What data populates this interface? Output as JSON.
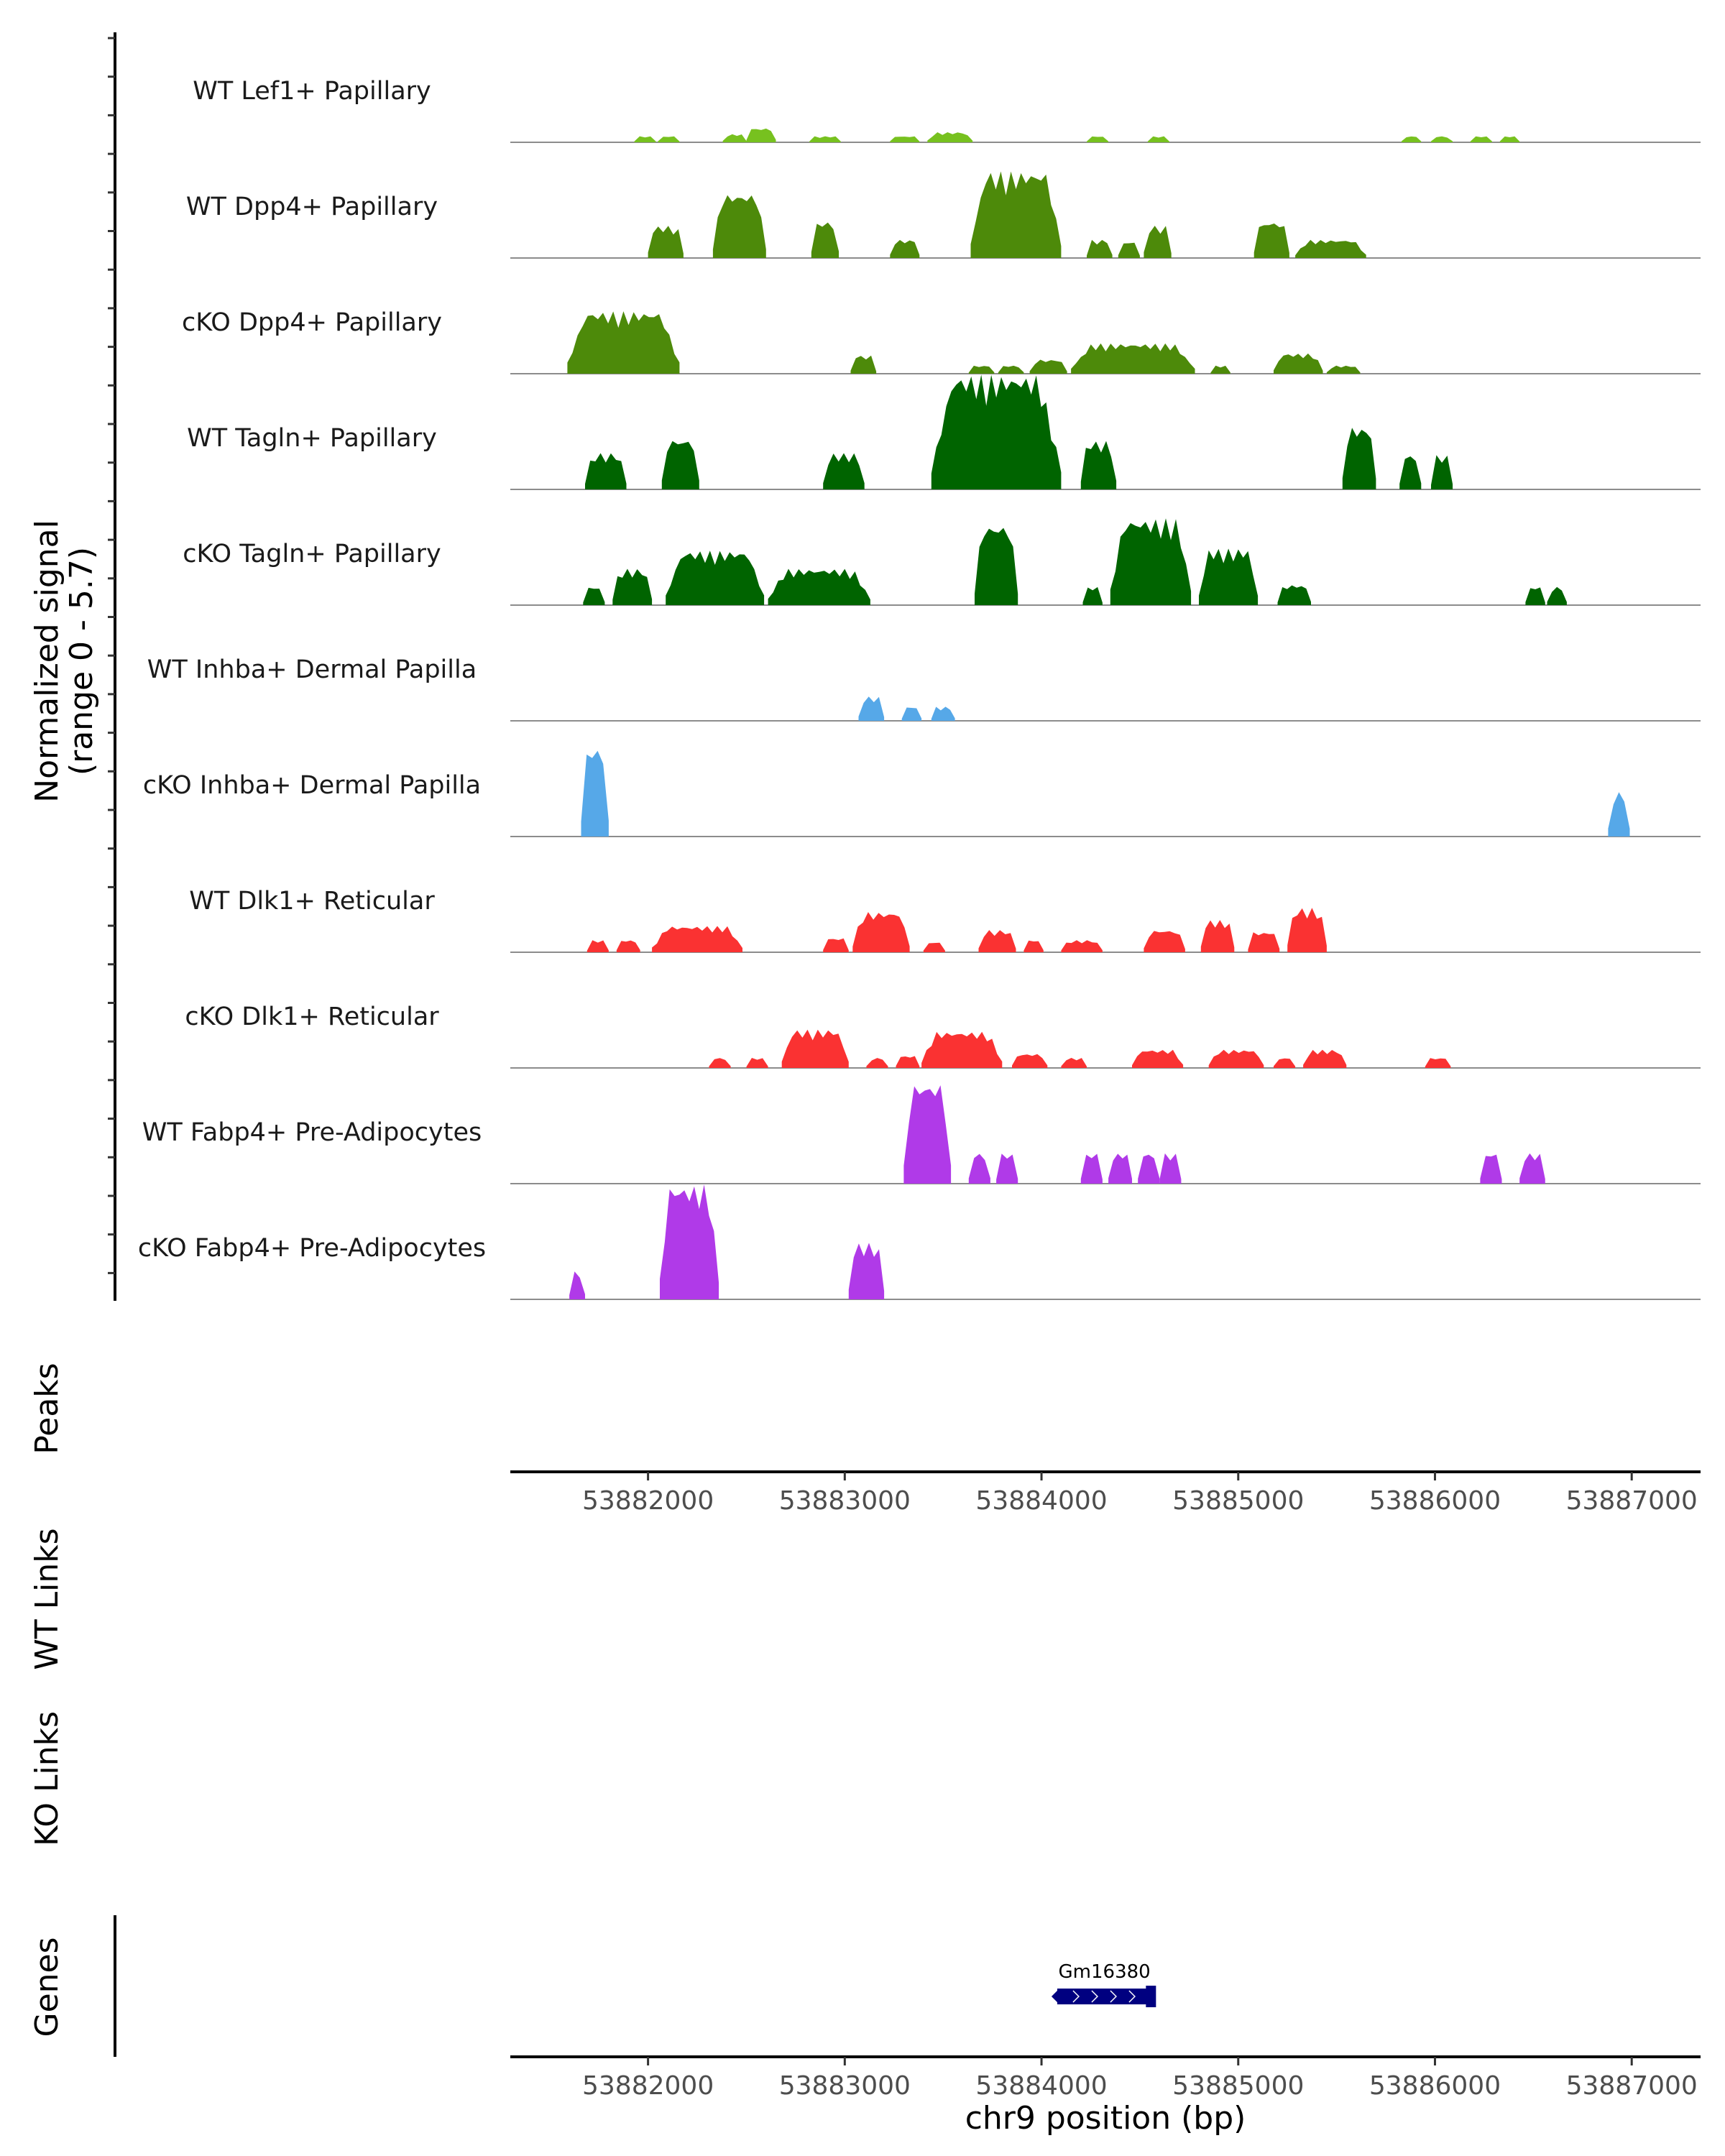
{
  "chart_data": {
    "type": "area",
    "title": "",
    "xlabel": "chr9 position (bp)",
    "ylabel": "Normalized signal\n(range 0 - 5.7)",
    "ylabel_lines": [
      "Normalized signal",
      "(range 0 - 5.7)"
    ],
    "ylim": [
      0,
      5.7
    ],
    "xlim": [
      53881300,
      53887350
    ],
    "x_ticks": [
      53882000,
      53883000,
      53884000,
      53885000,
      53886000,
      53887000
    ],
    "x_tick_labels": [
      "53882000",
      "53883000",
      "53884000",
      "53885000",
      "53886000",
      "53887000"
    ],
    "panel_titles": [
      "Peaks",
      "WT Links",
      "KO Links",
      "Genes"
    ],
    "series": [
      {
        "name": "WT Lef1+ Papillary",
        "color": "#77c11f",
        "segments": [
          [
            53881930,
            53882040,
            0.3
          ],
          [
            53882050,
            53882160,
            0.3
          ],
          [
            53882380,
            53882500,
            0.4
          ],
          [
            53882500,
            53882650,
            0.7
          ],
          [
            53882820,
            53882980,
            0.3
          ],
          [
            53883230,
            53883380,
            0.3
          ],
          [
            53883420,
            53883650,
            0.5
          ],
          [
            53884230,
            53884340,
            0.3
          ],
          [
            53884540,
            53884650,
            0.3
          ],
          [
            53885830,
            53885930,
            0.3
          ],
          [
            53885980,
            53886090,
            0.3
          ],
          [
            53886180,
            53886290,
            0.3
          ],
          [
            53886330,
            53886430,
            0.3
          ]
        ]
      },
      {
        "name": "WT Dpp4+ Papillary",
        "color": "#4d8a0a",
        "segments": [
          [
            53882000,
            53882180,
            1.6
          ],
          [
            53882330,
            53882600,
            3.2
          ],
          [
            53882830,
            53882970,
            1.8
          ],
          [
            53883230,
            53883380,
            0.9
          ],
          [
            53883640,
            53884100,
            4.3
          ],
          [
            53884230,
            53884360,
            0.9
          ],
          [
            53884390,
            53884500,
            0.8
          ],
          [
            53884520,
            53884660,
            1.6
          ],
          [
            53885080,
            53885260,
            1.8
          ],
          [
            53885290,
            53885650,
            0.9
          ]
        ]
      },
      {
        "name": "cKO Dpp4+ Papillary",
        "color": "#4d8a0a",
        "segments": [
          [
            53881590,
            53882160,
            3.1
          ],
          [
            53883030,
            53883160,
            0.9
          ],
          [
            53883630,
            53883760,
            0.4
          ],
          [
            53883780,
            53883910,
            0.4
          ],
          [
            53883940,
            53884130,
            0.7
          ],
          [
            53884150,
            53884780,
            1.5
          ],
          [
            53884860,
            53884960,
            0.4
          ],
          [
            53885180,
            53885430,
            1.0
          ],
          [
            53885450,
            53885620,
            0.4
          ]
        ]
      },
      {
        "name": "WT Tagln+ Papillary",
        "color": "#006400",
        "segments": [
          [
            53881680,
            53881890,
            1.8
          ],
          [
            53882070,
            53882260,
            2.5
          ],
          [
            53882890,
            53883100,
            1.8
          ],
          [
            53883440,
            53884100,
            5.7
          ],
          [
            53884200,
            53884380,
            2.4
          ],
          [
            53885530,
            53885700,
            3.1
          ],
          [
            53885820,
            53885930,
            1.7
          ],
          [
            53885980,
            53886090,
            1.7
          ]
        ]
      },
      {
        "name": "cKO Tagln+ Papillary",
        "color": "#006400",
        "segments": [
          [
            53881670,
            53881780,
            0.9
          ],
          [
            53881820,
            53882020,
            1.8
          ],
          [
            53882090,
            53882590,
            2.7
          ],
          [
            53882610,
            53883130,
            1.8
          ],
          [
            53883660,
            53883880,
            4.0
          ],
          [
            53884210,
            53884310,
            0.9
          ],
          [
            53884350,
            53884760,
            4.3
          ],
          [
            53884800,
            53885100,
            2.8
          ],
          [
            53885200,
            53885370,
            1.0
          ],
          [
            53886460,
            53886560,
            0.9
          ],
          [
            53886570,
            53886670,
            0.9
          ]
        ]
      },
      {
        "name": "WT Inhba+ Dermal Papilla",
        "color": "#56a8e8",
        "segments": [
          [
            53883070,
            53883200,
            1.2
          ],
          [
            53883290,
            53883390,
            0.7
          ],
          [
            53883440,
            53883560,
            0.7
          ]
        ]
      },
      {
        "name": "cKO Inhba+ Dermal Papilla",
        "color": "#56a8e8",
        "segments": [
          [
            53881660,
            53881800,
            4.4
          ],
          [
            53886880,
            53886990,
            2.2
          ]
        ]
      },
      {
        "name": "WT Dlk1+ Reticular",
        "color": "#fa3232",
        "segments": [
          [
            53881690,
            53881800,
            0.6
          ],
          [
            53881840,
            53881960,
            0.6
          ],
          [
            53882020,
            53882480,
            1.3
          ],
          [
            53882890,
            53883020,
            0.7
          ],
          [
            53883040,
            53883330,
            2.0
          ],
          [
            53883400,
            53883510,
            0.5
          ],
          [
            53883680,
            53883870,
            1.1
          ],
          [
            53883910,
            53884010,
            0.6
          ],
          [
            53884100,
            53884310,
            0.6
          ],
          [
            53884520,
            53884730,
            1.1
          ],
          [
            53884810,
            53884980,
            1.6
          ],
          [
            53885050,
            53885210,
            1.0
          ],
          [
            53885250,
            53885450,
            2.2
          ]
        ]
      },
      {
        "name": "cKO Dlk1+ Reticular",
        "color": "#fa3232",
        "segments": [
          [
            53882310,
            53882420,
            0.5
          ],
          [
            53882500,
            53882610,
            0.5
          ],
          [
            53882680,
            53883020,
            1.9
          ],
          [
            53883110,
            53883220,
            0.5
          ],
          [
            53883260,
            53883380,
            0.6
          ],
          [
            53883390,
            53883800,
            1.8
          ],
          [
            53883850,
            53884030,
            0.7
          ],
          [
            53884100,
            53884230,
            0.5
          ],
          [
            53884460,
            53884720,
            0.9
          ],
          [
            53884850,
            53885130,
            0.9
          ],
          [
            53885180,
            53885290,
            0.5
          ],
          [
            53885330,
            53885550,
            0.9
          ],
          [
            53885950,
            53886080,
            0.5
          ]
        ]
      },
      {
        "name": "WT Fabp4+ Pre-Adipocytes",
        "color": "#b03ae8",
        "segments": [
          [
            53883300,
            53883540,
            5.0
          ],
          [
            53883630,
            53883740,
            1.5
          ],
          [
            53883770,
            53883880,
            1.5
          ],
          [
            53884200,
            53884310,
            1.5
          ],
          [
            53884340,
            53884460,
            1.5
          ],
          [
            53884490,
            53884600,
            1.5
          ],
          [
            53884600,
            53884710,
            1.5
          ],
          [
            53886230,
            53886340,
            1.5
          ],
          [
            53886430,
            53886560,
            1.5
          ]
        ]
      },
      {
        "name": "cKO Fabp4+ Pre-Adipocytes",
        "color": "#b03ae8",
        "segments": [
          [
            53881600,
            53881680,
            1.4
          ],
          [
            53882060,
            53882360,
            5.7
          ],
          [
            53883020,
            53883200,
            2.8
          ]
        ]
      }
    ],
    "genes": [
      {
        "name": "Gm16380",
        "start": 53884080,
        "end": 53884560,
        "color": "#000080"
      }
    ]
  }
}
